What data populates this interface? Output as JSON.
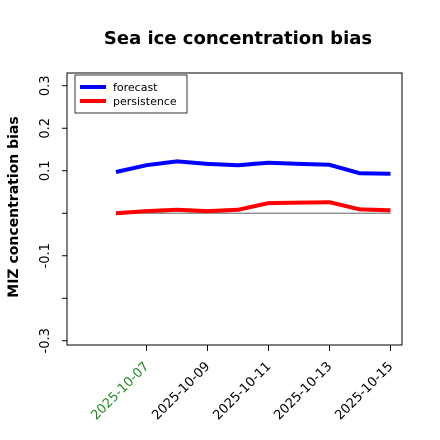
{
  "chart_data": {
    "type": "line",
    "title": "Sea ice concentration bias",
    "xlabel": "",
    "ylabel": "MIZ concentration bias",
    "ylim": [
      -0.31,
      0.33
    ],
    "x": [
      "2025-10-06",
      "2025-10-07",
      "2025-10-08",
      "2025-10-09",
      "2025-10-10",
      "2025-10-11",
      "2025-10-12",
      "2025-10-13",
      "2025-10-14",
      "2025-10-15"
    ],
    "x_tick_dates": [
      "2025-10-07",
      "2025-10-09",
      "2025-10-11",
      "2025-10-13",
      "2025-10-15"
    ],
    "x_tick_labels": [
      "2025-10-07",
      "2025-10-09",
      "2025-10-11",
      "2025-10-13",
      "2025-10-15"
    ],
    "x_tick_colors": [
      "#228B22",
      "#000000",
      "#000000",
      "#000000",
      "#000000"
    ],
    "y_tick_values": [
      0.3,
      0.2,
      0.1,
      -0.1,
      -0.3
    ],
    "y_tick_labels": [
      "0.3",
      "0.2",
      "0.1",
      "-0.1",
      "-0.3"
    ],
    "y_minor_ticks": [
      0.0,
      -0.2
    ],
    "zero_line": 0.0,
    "grid": false,
    "legend_position": "top-left",
    "series": [
      {
        "name": "forecast",
        "color": "#0000ff",
        "values": [
          0.097,
          0.113,
          0.122,
          0.116,
          0.113,
          0.119,
          0.116,
          0.114,
          0.094,
          0.093
        ]
      },
      {
        "name": "persistence",
        "color": "#ff0000",
        "values": [
          0.0,
          0.005,
          0.008,
          0.005,
          0.008,
          0.024,
          0.025,
          0.026,
          0.009,
          0.007
        ]
      }
    ]
  }
}
